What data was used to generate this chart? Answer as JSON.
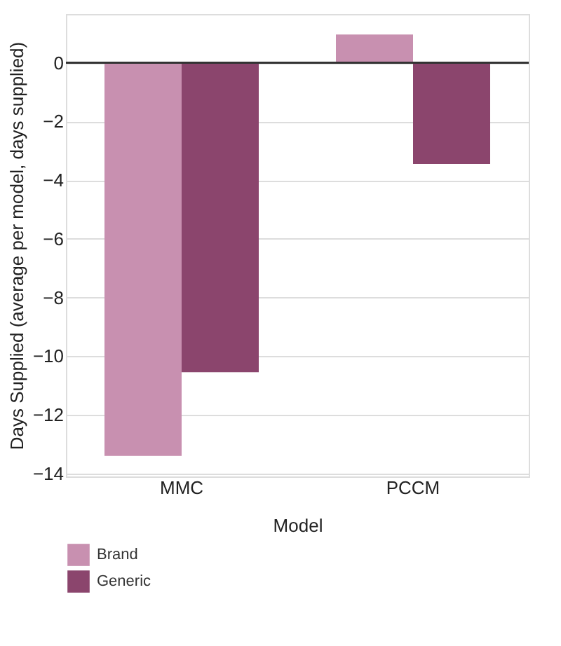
{
  "chart_data": {
    "type": "bar",
    "xlabel": "Model",
    "ylabel": "Days Supplied (average per model, days supplied)",
    "categories": [
      "MMC",
      "PCCM"
    ],
    "series": [
      {
        "name": "Brand",
        "color": "#c890b0",
        "values": [
          -13.4,
          0.96
        ]
      },
      {
        "name": "Generic",
        "color": "#8b456d",
        "values": [
          -10.55,
          -3.45
        ]
      }
    ],
    "ylim": [
      -14.1,
      1.66
    ],
    "yticks": [
      -14,
      -12,
      -10,
      -8,
      -6,
      -4,
      -2,
      0
    ],
    "ref_lines": [
      {
        "axis": "y",
        "value": 0,
        "color": "#333333"
      }
    ],
    "grid": "y",
    "legend": "bottom left"
  }
}
